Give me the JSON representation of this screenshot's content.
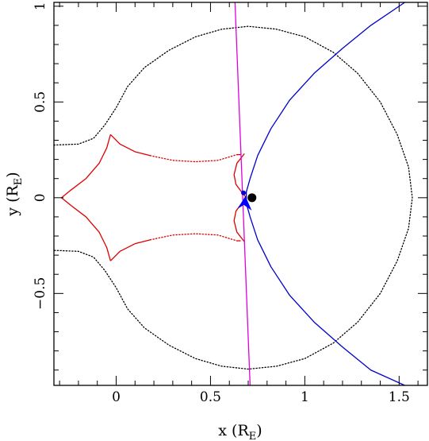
{
  "chart_data": {
    "type": "line",
    "xlabel": {
      "text": "x (R",
      "sub": "E",
      "close": ")"
    },
    "ylabel": {
      "text": "y (R",
      "sub": "E",
      "close": ")"
    },
    "xlim": [
      -0.33,
      1.65
    ],
    "ylim": [
      -0.98,
      1.02
    ],
    "x_ticks": [
      {
        "value": 0,
        "label": "0"
      },
      {
        "value": 0.5,
        "label": "0.5"
      },
      {
        "value": 1,
        "label": "1"
      },
      {
        "value": 1.5,
        "label": "1.5"
      }
    ],
    "y_ticks": [
      {
        "value": 1,
        "label": "1"
      },
      {
        "value": 0.5,
        "label": "0.5"
      },
      {
        "value": 0,
        "label": "0"
      },
      {
        "value": -0.5,
        "label": "−0.5"
      }
    ],
    "grid": false,
    "series": [
      {
        "style": "dotted",
        "color": "#000000",
        "points": [
          [
            -0.33,
            0.275
          ],
          [
            -0.2,
            0.28
          ],
          [
            -0.12,
            0.31
          ],
          [
            -0.06,
            0.38
          ],
          [
            0.0,
            0.47
          ],
          [
            0.06,
            0.58
          ],
          [
            0.15,
            0.68
          ],
          [
            0.28,
            0.77
          ],
          [
            0.42,
            0.84
          ],
          [
            0.56,
            0.88
          ],
          [
            0.7,
            0.895
          ],
          [
            0.85,
            0.88
          ],
          [
            1.0,
            0.84
          ],
          [
            1.15,
            0.76
          ],
          [
            1.28,
            0.65
          ],
          [
            1.4,
            0.5
          ],
          [
            1.49,
            0.33
          ],
          [
            1.55,
            0.16
          ],
          [
            1.57,
            0.0
          ],
          [
            1.55,
            -0.16
          ],
          [
            1.49,
            -0.33
          ],
          [
            1.4,
            -0.5
          ],
          [
            1.28,
            -0.65
          ],
          [
            1.15,
            -0.76
          ],
          [
            1.0,
            -0.84
          ],
          [
            0.85,
            -0.88
          ],
          [
            0.7,
            -0.895
          ],
          [
            0.56,
            -0.88
          ],
          [
            0.42,
            -0.84
          ],
          [
            0.28,
            -0.77
          ],
          [
            0.15,
            -0.68
          ],
          [
            0.06,
            -0.58
          ],
          [
            0.0,
            -0.47
          ],
          [
            -0.06,
            -0.38
          ],
          [
            -0.12,
            -0.31
          ],
          [
            -0.2,
            -0.28
          ],
          [
            -0.33,
            -0.275
          ]
        ]
      },
      {
        "style": "solid",
        "color": "#dd0000",
        "points": [
          [
            -0.03,
            0.33
          ],
          [
            -0.05,
            0.26
          ],
          [
            -0.09,
            0.18
          ],
          [
            -0.16,
            0.1
          ],
          [
            -0.24,
            0.04
          ],
          [
            -0.29,
            0.0
          ],
          [
            -0.24,
            -0.04
          ],
          [
            -0.16,
            -0.1
          ],
          [
            -0.09,
            -0.18
          ],
          [
            -0.05,
            -0.26
          ],
          [
            -0.03,
            -0.33
          ]
        ]
      },
      {
        "style": "solid",
        "color": "#dd0000",
        "points": [
          [
            -0.03,
            0.33
          ],
          [
            0.02,
            0.28
          ],
          [
            0.1,
            0.24
          ],
          [
            0.18,
            0.22
          ]
        ]
      },
      {
        "style": "dotted",
        "color": "#dd0000",
        "points": [
          [
            0.18,
            0.22
          ],
          [
            0.3,
            0.195
          ],
          [
            0.42,
            0.188
          ],
          [
            0.54,
            0.195
          ],
          [
            0.64,
            0.225
          ]
        ]
      },
      {
        "style": "solid",
        "color": "#dd0000",
        "points": [
          [
            0.64,
            0.225
          ],
          [
            0.66,
            0.225
          ]
        ]
      },
      {
        "style": "solid",
        "color": "#dd0000",
        "points": [
          [
            -0.03,
            -0.33
          ],
          [
            0.02,
            -0.28
          ],
          [
            0.1,
            -0.24
          ],
          [
            0.18,
            -0.22
          ]
        ]
      },
      {
        "style": "dotted",
        "color": "#dd0000",
        "points": [
          [
            0.18,
            -0.22
          ],
          [
            0.3,
            -0.195
          ],
          [
            0.42,
            -0.188
          ],
          [
            0.54,
            -0.195
          ],
          [
            0.64,
            -0.225
          ]
        ]
      },
      {
        "style": "solid",
        "color": "#dd0000",
        "points": [
          [
            0.64,
            -0.225
          ],
          [
            0.66,
            -0.225
          ]
        ]
      },
      {
        "style": "solid",
        "color": "#dd0000",
        "points": [
          [
            0.68,
            0.23
          ],
          [
            0.64,
            0.18
          ],
          [
            0.625,
            0.12
          ],
          [
            0.635,
            0.07
          ],
          [
            0.665,
            0.03
          ],
          [
            0.69,
            0.0
          ],
          [
            0.665,
            -0.03
          ],
          [
            0.635,
            -0.07
          ],
          [
            0.625,
            -0.12
          ],
          [
            0.64,
            -0.18
          ],
          [
            0.68,
            -0.23
          ]
        ]
      },
      {
        "style": "solid",
        "color": "#0000cc",
        "points": [
          [
            1.53,
            1.02
          ],
          [
            1.35,
            0.9
          ],
          [
            1.2,
            0.78
          ],
          [
            1.05,
            0.65
          ],
          [
            0.92,
            0.51
          ],
          [
            0.82,
            0.36
          ],
          [
            0.75,
            0.22
          ],
          [
            0.71,
            0.1
          ],
          [
            0.69,
            0.03
          ],
          [
            0.69,
            -0.03
          ],
          [
            0.71,
            -0.1
          ],
          [
            0.75,
            -0.22
          ],
          [
            0.82,
            -0.36
          ],
          [
            0.92,
            -0.51
          ],
          [
            1.05,
            -0.65
          ],
          [
            1.2,
            -0.78
          ],
          [
            1.35,
            -0.9
          ],
          [
            1.53,
            -0.98
          ]
        ]
      },
      {
        "style": "solid",
        "color": "#dd00dd",
        "points": [
          [
            0.63,
            1.02
          ],
          [
            0.71,
            -0.98
          ]
        ]
      }
    ],
    "markers": [
      {
        "type": "dot",
        "x": 0.72,
        "y": 0.0,
        "size": "large",
        "color": "#000000"
      },
      {
        "type": "dot",
        "x": 0.675,
        "y": 0.025,
        "size": "small",
        "color": "#0000cc"
      },
      {
        "type": "arrow",
        "x": 0.685,
        "y": 0.0,
        "color": "#0000ff",
        "direction": "down-left"
      }
    ]
  }
}
